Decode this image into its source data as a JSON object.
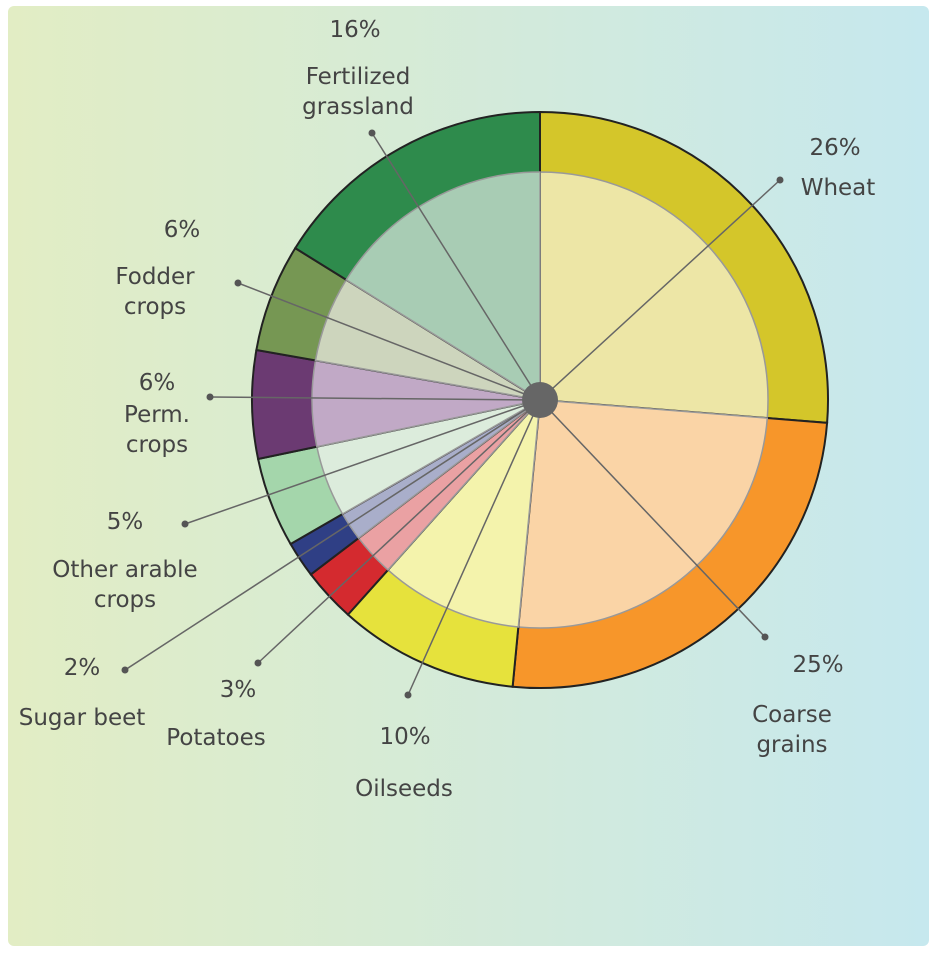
{
  "chart_data": {
    "type": "pie",
    "categories": [
      "Wheat",
      "Coarse grains",
      "Oilseeds",
      "Potatoes",
      "Sugar beet",
      "Other arable crops",
      "Perm. crops",
      "Fodder crops",
      "Fertilized grassland"
    ],
    "values": [
      26,
      25,
      10,
      3,
      2,
      5,
      6,
      6,
      16
    ],
    "value_labels": [
      "26%",
      "25%",
      "10%",
      "3%",
      "2%",
      "5%",
      "6%",
      "6%",
      "16%"
    ],
    "colors": [
      "#d4c62a",
      "#f7962a",
      "#e6e23c",
      "#d42a2f",
      "#2f3f85",
      "#a4d6ab",
      "#6b3a72",
      "#769753",
      "#2e8b4c"
    ],
    "inner_colors": [
      "#ede6a6",
      "#fad4a6",
      "#f4f3ac",
      "#eaa1a3",
      "#a9aeca",
      "#dcecdc",
      "#c1a9c6",
      "#cdd5bd",
      "#a8ccb4"
    ]
  }
}
